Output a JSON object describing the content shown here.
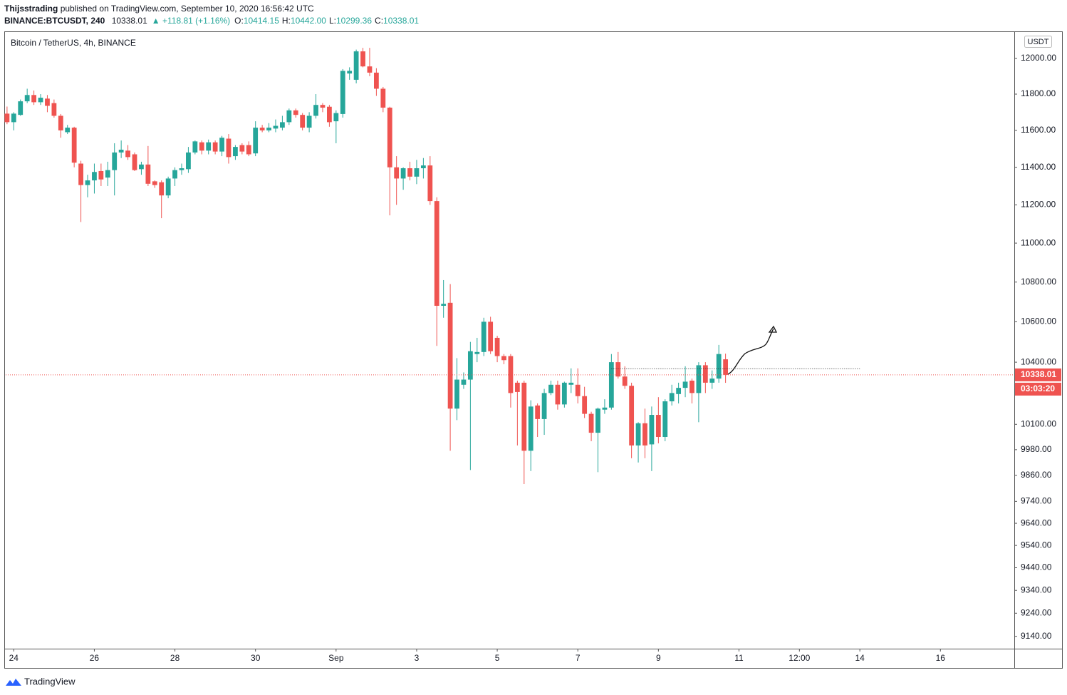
{
  "chart_data": {
    "type": "candlestick",
    "author": "Thijsstrading",
    "published": "published on TradingView.com, September 10, 2020 16:56:42 UTC",
    "symbol": "BINANCE:BTCUSDT, 240",
    "last": "10338.01",
    "change": "▲ +118.81 (+1.16%)",
    "ohlc": [
      {
        "label": "O:",
        "value": "10414.15"
      },
      {
        "label": "H:",
        "value": "10442.00"
      },
      {
        "label": "L:",
        "value": "10299.36"
      },
      {
        "label": "C:",
        "value": "10338.01"
      }
    ],
    "title": "Bitcoin / TetherUS, 4h, BINANCE",
    "currency": "USDT",
    "last_price": "10338.01",
    "countdown": "03:03:20",
    "footer": "TradingView",
    "up_color": "#26a69a",
    "down_color": "#ef5350",
    "log": true,
    "grid": false,
    "candles": {
      "open": [
        11692,
        11645,
        11685,
        11760,
        11795,
        11755,
        11775,
        11750,
        11680,
        11590,
        11615,
        11420,
        11305,
        11330,
        11380,
        11345,
        11385,
        11480,
        11490,
        11470,
        11390,
        11415,
        11325,
        11320,
        11250,
        11340,
        11385,
        11390,
        11480,
        11535,
        11490,
        11535,
        11485,
        11555,
        11460,
        11520,
        11520,
        11475,
        11615,
        11600,
        11610,
        11615,
        11645,
        11710,
        11685,
        11615,
        11680,
        11740,
        11730,
        11650,
        11690,
        11915,
        11880,
        12040,
        11955,
        11920,
        11830,
        11725,
        11400,
        11340,
        11395,
        11350,
        11395,
        11410,
        11220,
        10680,
        10695,
        10175,
        10290,
        10315,
        10440,
        10450,
        10600,
        10520,
        10430,
        10430,
        10300,
        10300,
        9975,
        10190,
        10125,
        10250,
        10290,
        10195,
        10290,
        10290,
        10235,
        10150,
        10060,
        10170,
        10180,
        10400,
        10330,
        10285,
        10000,
        10105,
        10005,
        10145,
        10040,
        10210,
        10245,
        10275,
        10310,
        10250,
        10385,
        10300,
        10320,
        10414.15
      ],
      "high": [
        11731,
        11700,
        11770,
        11830,
        11820,
        11800,
        11795,
        11770,
        11690,
        11630,
        11620,
        11435,
        11360,
        11420,
        11420,
        11430,
        11530,
        11545,
        11520,
        11480,
        11430,
        11515,
        11330,
        11330,
        11350,
        11400,
        11420,
        11510,
        11545,
        11545,
        11550,
        11545,
        11570,
        11580,
        11520,
        11530,
        11540,
        11650,
        11630,
        11640,
        11660,
        11680,
        11720,
        11720,
        11695,
        11700,
        11800,
        11750,
        11740,
        11710,
        11940,
        11950,
        12050,
        12060,
        12060,
        11945,
        11840,
        11730,
        11460,
        11400,
        11430,
        11440,
        11450,
        11460,
        11240,
        10810,
        10790,
        10420,
        10350,
        10500,
        10520,
        10620,
        10625,
        10530,
        10440,
        10440,
        10310,
        10310,
        10215,
        10200,
        10270,
        10310,
        10310,
        10305,
        10370,
        10370,
        10280,
        10160,
        10180,
        10220,
        10440,
        10450,
        10380,
        10300,
        10110,
        10175,
        10185,
        10230,
        10220,
        10290,
        10300,
        10380,
        10320,
        10400,
        10400,
        10360,
        10485,
        10442
      ],
      "low": [
        11634,
        11600,
        11680,
        11750,
        11740,
        11740,
        11700,
        11670,
        11560,
        11580,
        11400,
        11110,
        11240,
        11260,
        11300,
        11300,
        11250,
        11450,
        11440,
        11380,
        11360,
        11300,
        11290,
        11130,
        11235,
        11300,
        11360,
        11370,
        11470,
        11470,
        11470,
        11470,
        11460,
        11420,
        11440,
        11470,
        11460,
        11460,
        11590,
        11590,
        11590,
        11600,
        11630,
        11670,
        11600,
        11590,
        11665,
        11700,
        11620,
        11530,
        11670,
        11880,
        11860,
        11950,
        11900,
        11790,
        11700,
        11145,
        11200,
        11280,
        11330,
        11310,
        11340,
        11200,
        10480,
        10620,
        9975,
        10120,
        10270,
        9885,
        10400,
        10430,
        10440,
        10400,
        10390,
        10180,
        10000,
        9820,
        9880,
        10040,
        10050,
        10240,
        10170,
        10180,
        10250,
        10200,
        10130,
        10020,
        9875,
        10150,
        10170,
        10320,
        10270,
        9940,
        9920,
        9940,
        9880,
        10010,
        10020,
        10190,
        10200,
        10230,
        10200,
        10110,
        10250,
        10270,
        10300,
        10299.36
      ],
      "close": [
        11645,
        11692,
        11760,
        11795,
        11755,
        11780,
        11735,
        11680,
        11600,
        11615,
        11425,
        11305,
        11330,
        11375,
        11335,
        11385,
        11480,
        11495,
        11455,
        11385,
        11415,
        11312,
        11305,
        11250,
        11340,
        11385,
        11395,
        11480,
        11540,
        11490,
        11535,
        11485,
        11560,
        11455,
        11510,
        11485,
        11470,
        11615,
        11600,
        11615,
        11625,
        11645,
        11710,
        11685,
        11615,
        11680,
        11740,
        11725,
        11645,
        11695,
        11930,
        11930,
        12040,
        11955,
        11920,
        11830,
        11725,
        11400,
        11340,
        11395,
        11350,
        11395,
        11410,
        11220,
        10680,
        10690,
        10175,
        10315,
        10315,
        10454,
        10450,
        10600,
        10454,
        10430,
        10410,
        10250,
        10255,
        9975,
        10185,
        10125,
        10250,
        10290,
        10195,
        10300,
        10300,
        10235,
        10150,
        10060,
        10175,
        10180,
        10400,
        10330,
        10285,
        10000,
        10105,
        10000,
        10145,
        10040,
        10210,
        10250,
        10275,
        10305,
        10250,
        10385,
        10300,
        10320,
        10440,
        10338.01
      ]
    },
    "lines": [
      {
        "value": 10368,
        "x": [
          90,
          127
        ]
      }
    ],
    "xlim": [
      -0.2,
      150
    ],
    "xticks": [
      {
        "value": 1,
        "label": "24"
      },
      {
        "value": 13,
        "label": "26"
      },
      {
        "value": 25,
        "label": "28"
      },
      {
        "value": 37,
        "label": "30"
      },
      {
        "value": 49,
        "label": "Sep"
      },
      {
        "value": 61,
        "label": "3"
      },
      {
        "value": 73,
        "label": "5"
      },
      {
        "value": 85,
        "label": "7"
      },
      {
        "value": 97,
        "label": "9"
      },
      {
        "value": 109,
        "label": "11"
      },
      {
        "value": 118,
        "label": "12:00"
      },
      {
        "value": 127,
        "label": "14"
      },
      {
        "value": 139,
        "label": "16"
      }
    ],
    "ylim": [
      9087,
      12154
    ],
    "yticks": [
      {
        "value": 12000,
        "label": "12000.00"
      },
      {
        "value": 11800,
        "label": "11800.00"
      },
      {
        "value": 11600,
        "label": "11600.00"
      },
      {
        "value": 11400,
        "label": "11400.00"
      },
      {
        "value": 11200,
        "label": "11200.00"
      },
      {
        "value": 11000,
        "label": "11000.00"
      },
      {
        "value": 10800,
        "label": "10800.00"
      },
      {
        "value": 10600,
        "label": "10600.00"
      },
      {
        "value": 10400,
        "label": "10400.00"
      },
      {
        "value": 10100,
        "label": "10100.00"
      },
      {
        "value": 9980,
        "label": "9980.00"
      },
      {
        "value": 9860,
        "label": "9860.00"
      },
      {
        "value": 9740,
        "label": "9740.00"
      },
      {
        "value": 9640,
        "label": "9640.00"
      },
      {
        "value": 9540,
        "label": "9540.00"
      },
      {
        "value": 9440,
        "label": "9440.00"
      },
      {
        "value": 9340,
        "label": "9340.00"
      },
      {
        "value": 9240,
        "label": "9240.00"
      },
      {
        "value": 9140,
        "label": "9140.00"
      }
    ]
  }
}
